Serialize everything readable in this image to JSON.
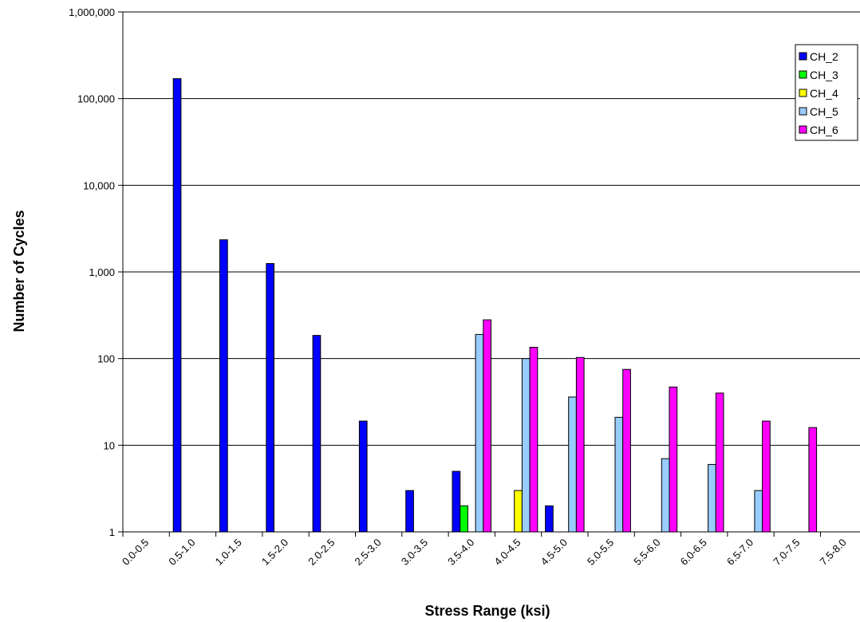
{
  "chart_data": {
    "type": "bar",
    "title": "",
    "xlabel": "Stress Range (ksi)",
    "ylabel": "Number of Cycles",
    "yscale": "log",
    "ylim": [
      1,
      1000000
    ],
    "yticks": [
      1,
      10,
      100,
      1000,
      10000,
      100000,
      1000000
    ],
    "ytick_labels": [
      "1",
      "10",
      "100",
      "1,000",
      "10,000",
      "100,000",
      "1,000,000"
    ],
    "grid": "horizontal major gridlines",
    "legend_position": "top-right",
    "categories": [
      "0.0-0.5",
      "0.5-1.0",
      "1.0-1.5",
      "1.5-2.0",
      "2.0-2.5",
      "2.5-3.0",
      "3.0-3.5",
      "3.5-4.0",
      "4.0-4.5",
      "4.5-5.0",
      "5.0-5.5",
      "5.5-6.0",
      "6.0-6.5",
      "6.5-7.0",
      "7.0-7.5",
      "7.5-8.0"
    ],
    "series": [
      {
        "name": "CH_2",
        "color": "#0000ff",
        "values": [
          null,
          170000,
          2350,
          1250,
          185,
          19,
          3,
          5,
          null,
          2,
          null,
          null,
          null,
          null,
          null,
          null
        ]
      },
      {
        "name": "CH_3",
        "color": "#00ff00",
        "values": [
          null,
          null,
          null,
          null,
          null,
          null,
          null,
          2,
          null,
          null,
          null,
          null,
          null,
          null,
          null,
          null
        ]
      },
      {
        "name": "CH_4",
        "color": "#ffff00",
        "values": [
          null,
          null,
          null,
          null,
          null,
          null,
          null,
          null,
          3,
          null,
          null,
          null,
          null,
          null,
          null,
          null
        ]
      },
      {
        "name": "CH_5",
        "color": "#99ccff",
        "values": [
          null,
          null,
          null,
          null,
          null,
          null,
          null,
          190,
          100,
          36,
          21,
          7,
          6,
          3,
          null,
          null
        ]
      },
      {
        "name": "CH_6",
        "color": "#ff00ff",
        "values": [
          null,
          null,
          null,
          null,
          null,
          null,
          null,
          280,
          135,
          103,
          75,
          47,
          40,
          19,
          16,
          null
        ]
      }
    ]
  }
}
